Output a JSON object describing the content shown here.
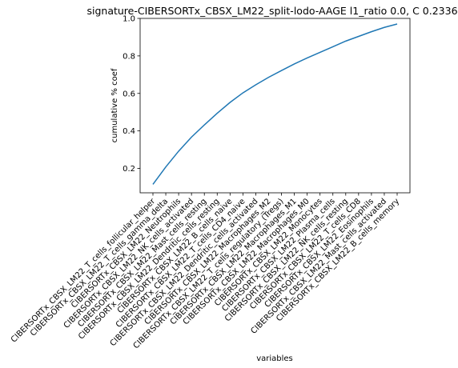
{
  "chart_data": {
    "type": "line",
    "title": "signature-CIBERSORTx_CBSX_LM22_split-lodo-AAGE l1_ratio 0.0, C 0.2336",
    "xlabel": "variables",
    "ylabel": "cumulative % coef",
    "ylim": [
      0.07,
      1.0
    ],
    "yticks": [
      "0.2",
      "0.4",
      "0.6",
      "0.8",
      "1.0"
    ],
    "ytick_values": [
      0.2,
      0.4,
      0.6,
      0.8,
      1.0
    ],
    "grid": false,
    "line_color": "#1f77b4",
    "categories": [
      "CIBERSORTx_CBSX_LM22_T_cells_follicular_helper",
      "CIBERSORTx_CBSX_LM22_T_cells_gamma_delta",
      "CIBERSORTx_CBSX_LM22_Neutrophils",
      "CIBERSORTx_CBSX_LM22_NK_cells_activated",
      "CIBERSORTx_CBSX_LM22_Mast_cells_resting",
      "CIBERSORTx_CBSX_LM22_Dendritic_cells_resting",
      "CIBERSORTx_CBSX_LM22_B_cells_naive",
      "CIBERSORTx_CBSX_LM22_T_cells_CD4_naive",
      "CIBERSORTx_CBSX_LM22_Dendritic_cells_activated",
      "CIBERSORTx_CBSX_LM22_Macrophages_M2",
      "CIBERSORTx_CBSX_LM22_T_cells_regulatory_(Tregs)",
      "CIBERSORTx_CBSX_LM22_Macrophages_M1",
      "CIBERSORTx_CBSX_LM22_Macrophages_M0",
      "CIBERSORTx_CBSX_LM22_Monocytes",
      "CIBERSORTx_CBSX_LM22_Plasma_cells",
      "CIBERSORTx_CBSX_LM22_NK_cells_resting",
      "CIBERSORTx_CBSX_LM22_T_cells_CD8",
      "CIBERSORTx_CBSX_LM22_Eosinophils",
      "CIBERSORTx_CBSX_LM22_Mast_cells_activated",
      "CIBERSORTx_CBSX_LM22_B_cells_memory"
    ],
    "values": [
      0.115,
      0.208,
      0.292,
      0.367,
      0.432,
      0.494,
      0.552,
      0.603,
      0.646,
      0.686,
      0.722,
      0.757,
      0.789,
      0.819,
      0.849,
      0.879,
      0.904,
      0.929,
      0.952,
      0.97
    ]
  }
}
